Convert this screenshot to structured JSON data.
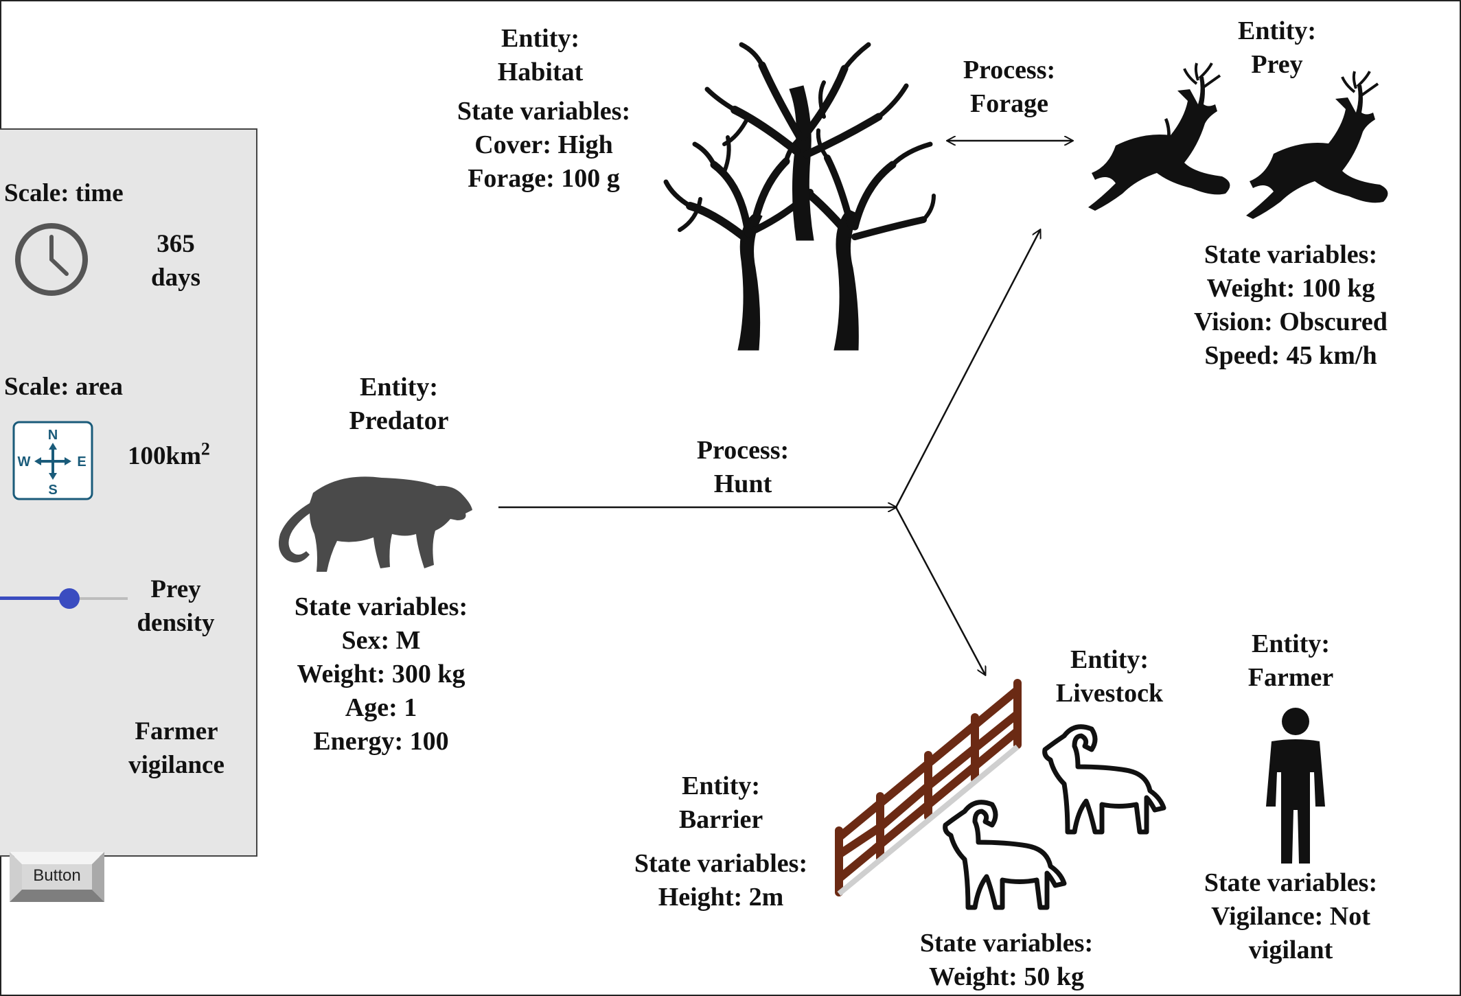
{
  "panel": {
    "time_scale": "Scale: time",
    "time_value": [
      "365",
      "days"
    ],
    "area_scale": "Scale: area",
    "area_value": "100km",
    "area_exp": "2",
    "compass": {
      "n": "N",
      "s": "S",
      "e": "E",
      "w": "W"
    },
    "slider_label": [
      "Prey",
      "density"
    ],
    "slider_value": 0.5,
    "button_text": "Button",
    "button_label": [
      "Farmer",
      "vigilance"
    ]
  },
  "habitat": {
    "entity": [
      "Entity:",
      "Habitat"
    ],
    "state": [
      "State variables:",
      "Cover: High",
      "Forage: 100 g"
    ]
  },
  "forage": [
    "Process:",
    "Forage"
  ],
  "prey": {
    "entity": [
      "Entity:",
      "Prey"
    ],
    "state": [
      "State variables:",
      "Weight: 100 kg",
      "Vision: Obscured",
      "Speed: 45 km/h"
    ]
  },
  "predator": {
    "entity": [
      "Entity:",
      "Predator"
    ],
    "state": [
      "State variables:",
      "Sex: M",
      "Weight: 300 kg",
      "Age: 1",
      "Energy: 100"
    ]
  },
  "hunt": [
    "Process:",
    "Hunt"
  ],
  "livestock": {
    "entity": [
      "Entity:",
      "Livestock"
    ],
    "state": [
      "State variables:",
      "Weight: 50 kg"
    ]
  },
  "barrier": {
    "entity": [
      "Entity:",
      "Barrier"
    ],
    "state": [
      "State variables:",
      "Height: 2m"
    ]
  },
  "farmer": {
    "entity": [
      "Entity:",
      "Farmer"
    ],
    "state": [
      "State variables:",
      "Vigilance: Not",
      "vigilant"
    ]
  },
  "colors": {
    "panel_bg": "#e6e6e6",
    "slider_accent": "#3a4cc0",
    "fence": "#6b2a14",
    "predator": "#4a4a4a",
    "compass": "#1a5b7a"
  }
}
